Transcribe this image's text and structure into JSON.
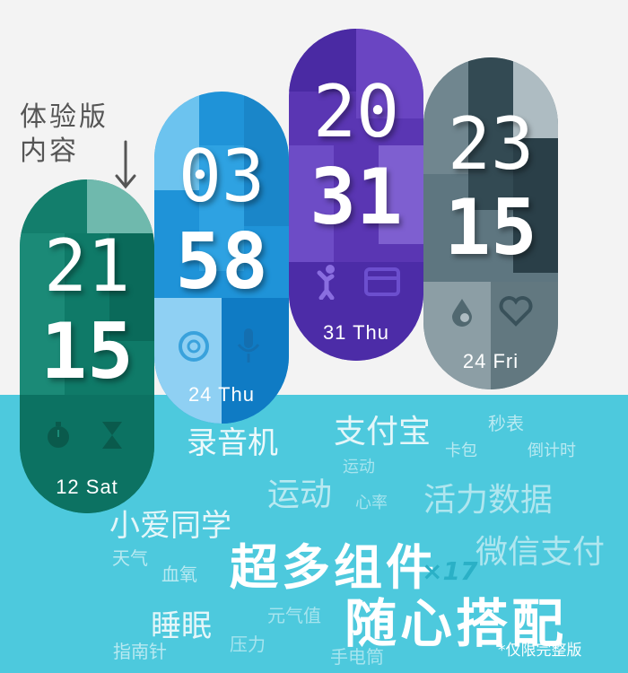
{
  "trial_label": "体验版内容",
  "bands": [
    {
      "hours": "21",
      "minutes": "15",
      "date": "12 Sat",
      "icons": [
        "stopwatch-icon",
        "hourglass-icon"
      ]
    },
    {
      "hours": "03",
      "minutes": "58",
      "date": "24 Thu",
      "icons": [
        "openai-knot-icon",
        "microphone-icon"
      ]
    },
    {
      "hours": "20",
      "minutes": "31",
      "date": "31 Thu",
      "icons": [
        "exercise-person-icon",
        "card-icon"
      ]
    },
    {
      "hours": "23",
      "minutes": "15",
      "date": "24 Fri",
      "icons": [
        "drop-icon",
        "heart-icon"
      ]
    }
  ],
  "widgets": {
    "w1": "录音机",
    "w2": "支付宝",
    "w3": "秒表",
    "w4": "卡包",
    "w5": "倒计时",
    "w6": "运动",
    "w7": "运动",
    "w8": "心率",
    "w9": "活力数据",
    "w10": "小爱同学",
    "w11": "微信支付",
    "w12": "天气",
    "w13": "血氧",
    "w14": "睡眠",
    "w15": "元气值",
    "w16": "指南针",
    "w17": "压力",
    "w18": "手电筒"
  },
  "headline": {
    "line1": "超多组件",
    "line2": "随心搭配",
    "count": "×17"
  },
  "note": "*仅限完整版",
  "colors": {
    "band1": "#0f7a68",
    "band2": "#1f93d8",
    "band3": "#5a36b3",
    "band4": "#5e7680",
    "bottom": "#4dc9dd"
  }
}
